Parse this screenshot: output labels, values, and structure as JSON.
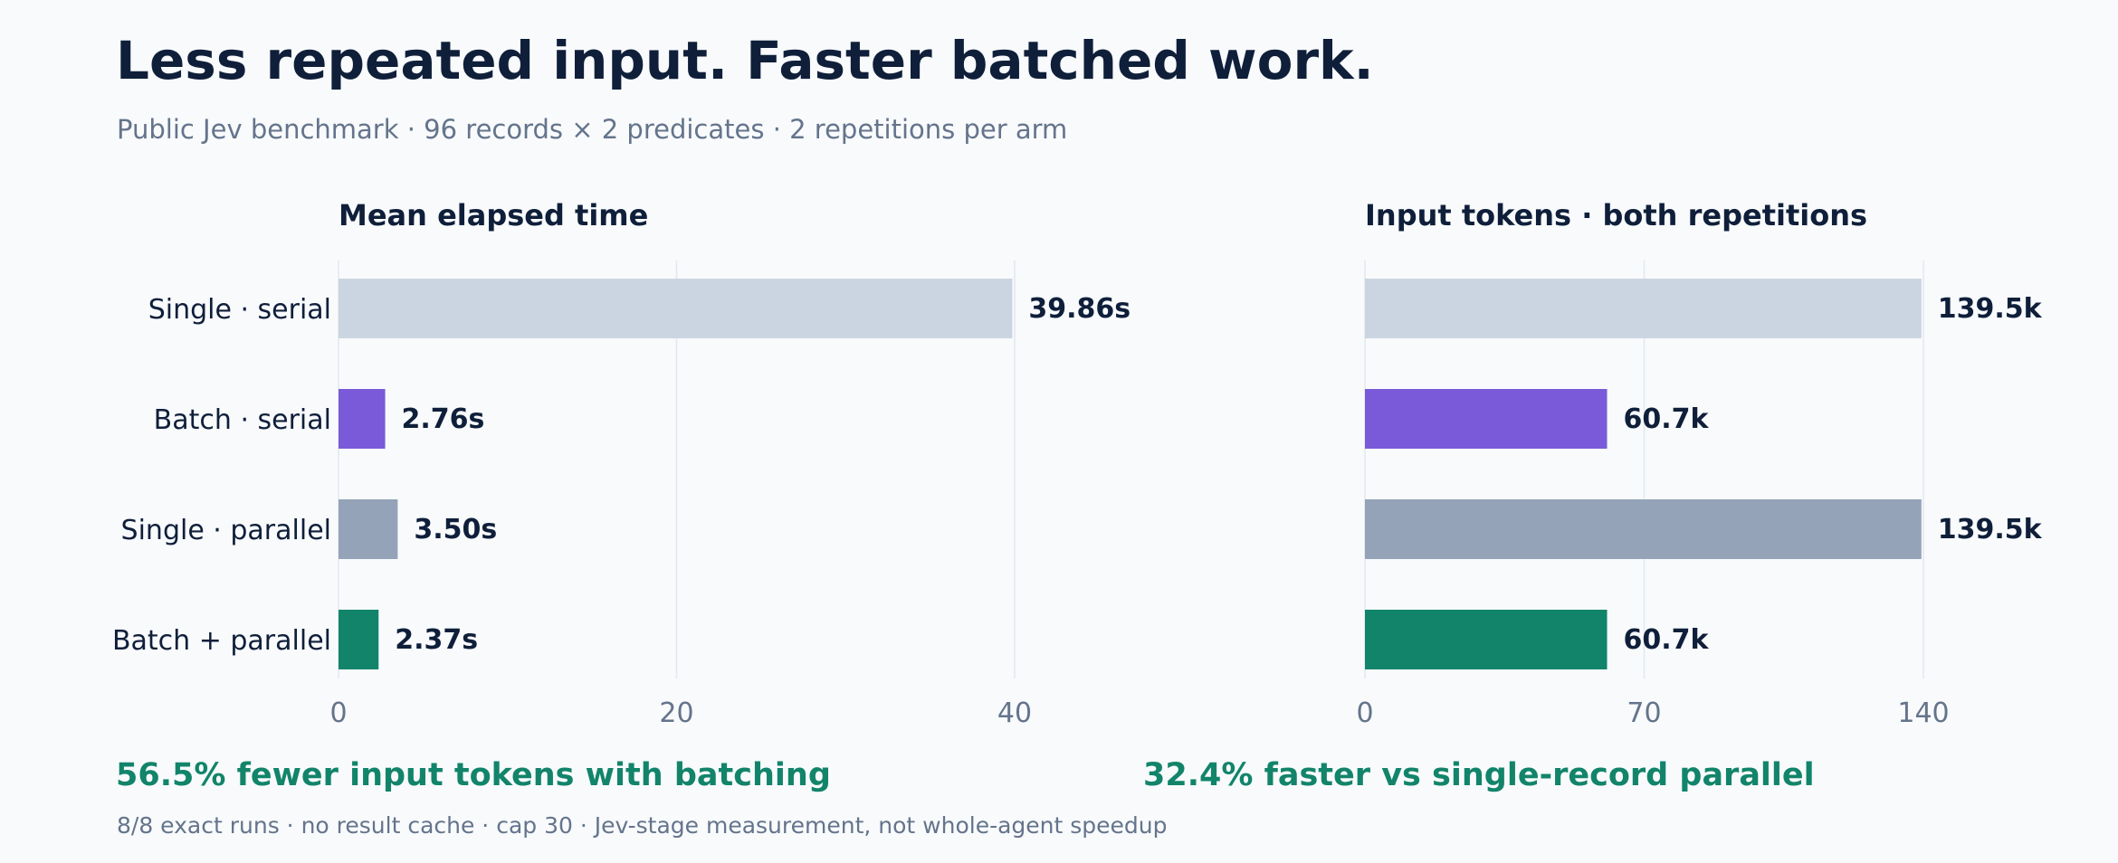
{
  "colors": {
    "background": "#f8fafc",
    "text": "#0f1f3a",
    "muted": "#64748b",
    "grid": "#e2e8f0",
    "accent": "#12846a"
  },
  "header": {
    "title": "Less repeated input. Faster batched work.",
    "subtitle": "Public Jev benchmark · 96 records × 2 predicates · 2 repetitions per arm"
  },
  "chart_data": [
    {
      "type": "bar",
      "orientation": "horizontal",
      "title": "Mean elapsed time",
      "xlabel": "",
      "ylabel": "",
      "categories": [
        "Single · serial",
        "Batch · serial",
        "Single · parallel",
        "Batch + parallel"
      ],
      "values": [
        39.86,
        2.76,
        3.5,
        2.37
      ],
      "value_labels": [
        "39.86s",
        "2.76s",
        "3.50s",
        "2.37s"
      ],
      "bar_colors": [
        "#cbd5e1",
        "#7a5ad8",
        "#94a3b8",
        "#12846a"
      ],
      "xlim": [
        0,
        40
      ],
      "xticks": [
        0,
        20,
        40
      ],
      "xtick_labels": [
        "0",
        "20",
        "40"
      ],
      "grid": true
    },
    {
      "type": "bar",
      "orientation": "horizontal",
      "title": "Input tokens · both repetitions",
      "xlabel": "",
      "ylabel": "",
      "categories": [
        "Single · serial",
        "Batch · serial",
        "Single · parallel",
        "Batch + parallel"
      ],
      "values": [
        139.5,
        60.7,
        139.5,
        60.7
      ],
      "value_labels": [
        "139.5k",
        "60.7k",
        "139.5k",
        "60.7k"
      ],
      "bar_colors": [
        "#cbd5e1",
        "#7a5ad8",
        "#94a3b8",
        "#12846a"
      ],
      "xlim": [
        0,
        140
      ],
      "xticks": [
        0,
        70,
        140
      ],
      "xtick_labels": [
        "0",
        "70",
        "140"
      ],
      "grid": true
    }
  ],
  "highlights": {
    "left": "56.5% fewer input tokens with batching",
    "right": "32.4% faster vs single-record parallel"
  },
  "footnote": "8/8 exact runs · no result cache · cap 30 · Jev-stage measurement, not whole-agent speedup"
}
